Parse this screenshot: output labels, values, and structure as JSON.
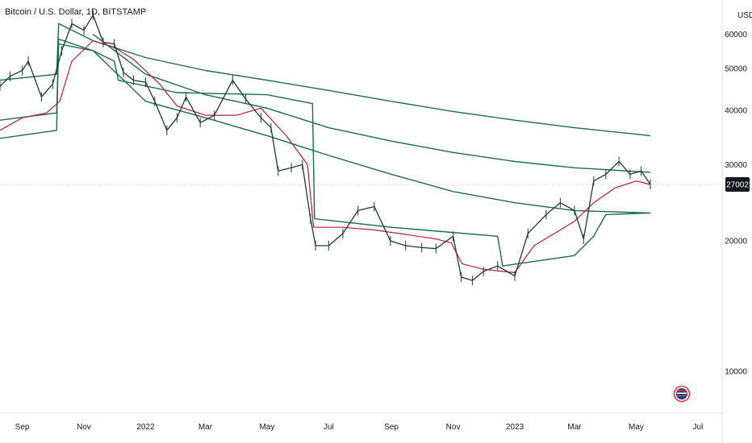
{
  "chart_title": "Bitcoin / U.S. Dollar, 1D, BITSTAMP",
  "currency_label": "USD",
  "last_price_label": "27002",
  "colors": {
    "band": "#1e6b4a",
    "mid": "#b71c3c",
    "candle": "#1a3c2c",
    "price_tag": "#131722",
    "grid": "#d1d4dc"
  },
  "chart_data": {
    "type": "line",
    "title": "Bitcoin / U.S. Dollar, 1D, BITSTAMP",
    "xlabel": "",
    "ylabel": "USD",
    "y_scale": "log",
    "ylim": [
      8000,
      72000
    ],
    "xlim": [
      "2021-08-10",
      "2023-07-25"
    ],
    "x_ticks": [
      {
        "date": "2021-09-01",
        "label": "Sep"
      },
      {
        "date": "2021-11-01",
        "label": "Nov"
      },
      {
        "date": "2022-01-01",
        "label": "2022"
      },
      {
        "date": "2022-03-01",
        "label": "Mar"
      },
      {
        "date": "2022-05-01",
        "label": "May"
      },
      {
        "date": "2022-07-01",
        "label": "Jul"
      },
      {
        "date": "2022-09-01",
        "label": "Sep"
      },
      {
        "date": "2022-11-01",
        "label": "Nov"
      },
      {
        "date": "2023-01-01",
        "label": "2023"
      },
      {
        "date": "2023-03-01",
        "label": "Mar"
      },
      {
        "date": "2023-05-01",
        "label": "May"
      },
      {
        "date": "2023-07-01",
        "label": "Jul"
      }
    ],
    "y_ticks": [
      10000,
      20000,
      30000,
      40000,
      50000,
      60000
    ],
    "series": [
      {
        "role": "price",
        "x": [
          "2021-08-10",
          "2021-08-20",
          "2021-09-01",
          "2021-09-07",
          "2021-09-20",
          "2021-10-01",
          "2021-10-10",
          "2021-10-20",
          "2021-11-01",
          "2021-11-10",
          "2021-11-20",
          "2021-12-01",
          "2021-12-10",
          "2021-12-20",
          "2022-01-01",
          "2022-01-10",
          "2022-01-22",
          "2022-02-01",
          "2022-02-10",
          "2022-02-24",
          "2022-03-10",
          "2022-03-28",
          "2022-04-10",
          "2022-04-25",
          "2022-05-05",
          "2022-05-12",
          "2022-05-25",
          "2022-06-05",
          "2022-06-13",
          "2022-06-18",
          "2022-07-01",
          "2022-07-15",
          "2022-07-30",
          "2022-08-15",
          "2022-08-31",
          "2022-09-15",
          "2022-10-01",
          "2022-10-15",
          "2022-11-01",
          "2022-11-09",
          "2022-11-20",
          "2022-12-01",
          "2022-12-15",
          "2023-01-01",
          "2023-01-14",
          "2023-02-01",
          "2023-02-15",
          "2023-03-01",
          "2023-03-10",
          "2023-03-20",
          "2023-04-01",
          "2023-04-14",
          "2023-04-25",
          "2023-05-06",
          "2023-05-15"
        ],
        "y": [
          45500,
          48000,
          49500,
          52000,
          43000,
          46000,
          55000,
          63500,
          61300,
          66500,
          57500,
          57000,
          49000,
          47000,
          46500,
          42000,
          36000,
          38500,
          43000,
          37500,
          39000,
          47000,
          42500,
          38500,
          36500,
          29000,
          29500,
          30000,
          22500,
          19500,
          19500,
          20800,
          23500,
          24000,
          20000,
          19500,
          19300,
          19200,
          20500,
          16500,
          16200,
          17000,
          17500,
          16600,
          20800,
          23000,
          24500,
          23500,
          20200,
          27500,
          28500,
          30500,
          28500,
          29000,
          27002
        ]
      },
      {
        "role": "mid",
        "x": [
          "2021-08-10",
          "2021-09-01",
          "2021-09-25",
          "2021-10-08",
          "2021-10-20",
          "2021-11-10",
          "2021-12-01",
          "2021-12-20",
          "2022-01-15",
          "2022-02-01",
          "2022-03-01",
          "2022-04-01",
          "2022-04-25",
          "2022-05-20",
          "2022-06-10",
          "2022-06-16",
          "2022-07-15",
          "2022-08-15",
          "2022-09-15",
          "2022-10-15",
          "2022-10-30",
          "2022-11-10",
          "2022-12-01",
          "2022-12-20",
          "2023-01-01",
          "2023-01-20",
          "2023-02-15",
          "2023-03-01",
          "2023-03-20",
          "2023-04-10",
          "2023-05-01",
          "2023-05-15"
        ],
        "y": [
          36000,
          38500,
          39500,
          42000,
          52000,
          58000,
          56000,
          52500,
          46000,
          41000,
          39000,
          39000,
          40500,
          35000,
          30000,
          21500,
          21500,
          21200,
          20700,
          20200,
          19800,
          17700,
          17200,
          17000,
          16900,
          19500,
          21200,
          22200,
          24500,
          26500,
          27500,
          27000
        ]
      },
      {
        "role": "band",
        "x": [
          "2021-08-10",
          "2021-10-05",
          "2021-10-07",
          "2021-11-10",
          "2022-01-01",
          "2022-03-01",
          "2022-05-01",
          "2022-07-01",
          "2022-09-01",
          "2022-11-01",
          "2023-01-01",
          "2023-03-01",
          "2023-05-15"
        ],
        "y": [
          47000,
          48500,
          63500,
          58000,
          53000,
          49500,
          47000,
          44500,
          42000,
          39800,
          38000,
          36500,
          35000
        ]
      },
      {
        "role": "band",
        "x": [
          "2021-11-10",
          "2022-01-01",
          "2022-03-01",
          "2022-05-01",
          "2022-07-01",
          "2022-09-01",
          "2022-11-01",
          "2023-01-01",
          "2023-03-01",
          "2023-05-15"
        ],
        "y": [
          60000,
          48500,
          43500,
          40500,
          36500,
          34000,
          32000,
          30500,
          29500,
          28800
        ]
      },
      {
        "role": "band",
        "x": [
          "2021-08-10",
          "2021-10-05",
          "2021-10-07",
          "2021-11-10",
          "2022-01-01",
          "2022-03-01",
          "2022-05-01",
          "2022-07-01",
          "2022-09-01",
          "2022-11-01",
          "2023-01-01",
          "2023-03-01",
          "2023-05-15"
        ],
        "y": [
          38000,
          39500,
          57000,
          55000,
          42000,
          38500,
          35000,
          31500,
          28500,
          26000,
          24500,
          23500,
          23200
        ]
      },
      {
        "role": "band",
        "x": [
          "2021-08-10",
          "2021-10-05",
          "2021-10-07",
          "2021-11-10",
          "2021-12-01",
          "2021-12-05",
          "2022-02-01",
          "2022-05-01",
          "2022-06-15",
          "2022-06-17",
          "2022-09-01",
          "2022-12-15",
          "2022-12-20",
          "2023-03-01",
          "2023-03-20",
          "2023-04-01",
          "2023-05-15"
        ],
        "y": [
          34500,
          36000,
          58500,
          55000,
          52000,
          47000,
          44000,
          43500,
          41500,
          22500,
          21500,
          20500,
          17500,
          18500,
          20500,
          23000,
          23200
        ]
      }
    ]
  }
}
